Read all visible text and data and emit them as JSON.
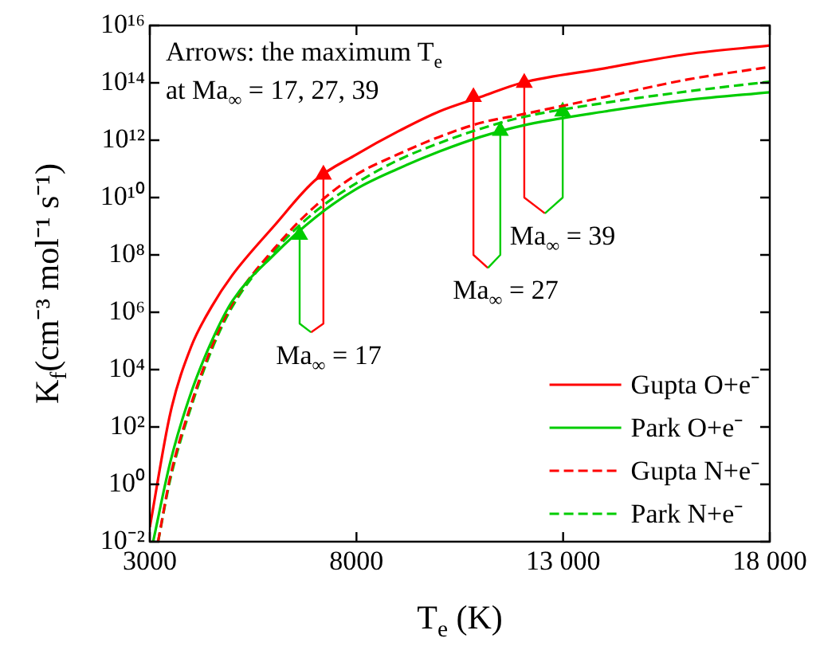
{
  "chart_data": {
    "type": "line",
    "xlabel": "T$_{e}$ (K)",
    "ylabel": "K$_{f}$(cm⁻³ mol⁻¹ s⁻¹)",
    "log": "y",
    "grid": false,
    "legend": "bottom right",
    "marker": "none",
    "xlim": [
      3000,
      18000
    ],
    "xticks": [
      3000,
      8000,
      {
        "value": 13000,
        "label": "13 000"
      },
      {
        "value": 18000,
        "label": "18 000"
      }
    ],
    "ylim": [
      0.01,
      1e+16
    ],
    "yticks": [
      {
        "value": 0.01,
        "label": "10⁻²"
      },
      {
        "value": 1,
        "label": "10⁰"
      },
      {
        "value": 100,
        "label": "10²"
      },
      {
        "value": 10000,
        "label": "10⁴"
      },
      {
        "value": 1000000.0,
        "label": "10⁶"
      },
      {
        "value": 100000000.0,
        "label": "10⁸"
      },
      {
        "value": 10000000000.0,
        "label": "10¹⁰"
      },
      {
        "value": 1000000000000.0,
        "label": "10¹²"
      },
      {
        "value": 100000000000000.0,
        "label": "10¹⁴"
      },
      {
        "value": 1e+16,
        "label": "10¹⁶"
      }
    ],
    "series": [
      {
        "name": "Gupta O+e⁻",
        "color": "#ff0000",
        "line_style": "solid",
        "x": [
          3000,
          3500,
          4000,
          4500,
          5000,
          6000,
          7000,
          8000,
          9000,
          10000,
          11000,
          12000,
          14000,
          16000,
          18000
        ],
        "values": [
          0.032,
          320,
          63000,
          1600000,
          20000000,
          1000000000,
          40000000000,
          320000000000,
          2000000000000,
          10000000000000,
          32000000000000,
          100000000000000,
          320000000000000,
          1000000000000000,
          2000000000000000
        ]
      },
      {
        "name": "Park O+e⁻",
        "color": "#00cc00",
        "line_style": "solid",
        "x": [
          3080,
          3500,
          4000,
          4500,
          5000,
          6000,
          7000,
          8000,
          9000,
          10000,
          11000,
          12000,
          14000,
          16000,
          18000
        ],
        "values": [
          0.01,
          6.3,
          1600,
          100000,
          2500000,
          100000000,
          2000000000,
          20000000000,
          100000000000,
          400000000000,
          1300000000000,
          3200000000000,
          10000000000000,
          25000000000000,
          47000000000000
        ]
      },
      {
        "name": "Gupta N+e⁻",
        "color": "#ff0000",
        "line_style": "dashed",
        "x": [
          3200,
          3500,
          4000,
          4500,
          5000,
          6000,
          7000,
          8000,
          9000,
          10000,
          11000,
          12000,
          14000,
          16000,
          18000
        ],
        "values": [
          0.01,
          2,
          630,
          63000,
          2000000,
          160000000,
          5000000000,
          63000000000,
          320000000000,
          1300000000000,
          4000000000000,
          7900000000000,
          32000000000000,
          130000000000000,
          360000000000000
        ]
      },
      {
        "name": "Park N+e⁻",
        "color": "#00cc00",
        "line_style": "dashed",
        "x": [
          3200,
          3500,
          4000,
          4500,
          5000,
          6000,
          7000,
          8000,
          9000,
          10000,
          11000,
          12000,
          14000,
          16000,
          18000
        ],
        "values": [
          0.01,
          1.6,
          500,
          50000,
          1600000,
          130000000,
          3200000000,
          32000000000,
          200000000000,
          790000000000,
          2500000000000,
          6300000000000,
          20000000000000,
          50000000000000,
          110000000000000
        ]
      },
      {
        "color": "#00cc00",
        "x": [
          6900,
          6625,
          6625
        ],
        "values": [
          200000,
          400000,
          500000000
        ]
      },
      {
        "color": "#ff0000",
        "x": [
          6900,
          7200,
          7200
        ],
        "values": [
          200000,
          400000,
          63000000000
        ]
      },
      {
        "color": "#00cc00",
        "x": [
          11180,
          11480,
          11480
        ],
        "values": [
          35000000,
          100000000,
          2100000000000
        ]
      },
      {
        "color": "#ff0000",
        "x": [
          11180,
          10830,
          10830
        ],
        "values": [
          35000000,
          100000000,
          32000000000000
        ]
      },
      {
        "color": "#00cc00",
        "x": [
          12560,
          12990,
          12990
        ],
        "values": [
          2800000000,
          10000000000,
          10000000000000
        ]
      },
      {
        "color": "#ff0000",
        "x": [
          12560,
          12060,
          12060
        ],
        "values": [
          2800000000,
          10000000000,
          100000000000000
        ]
      }
    ],
    "annotations": [
      "Arrows: the maximum T$_{e}$",
      "at Ma$_{∞}$ = 17, 27, 39",
      "Ma$_{∞}$ = 17",
      "Ma$_{∞}$ = 27",
      "Ma$_{∞}$ = 39"
    ]
  }
}
